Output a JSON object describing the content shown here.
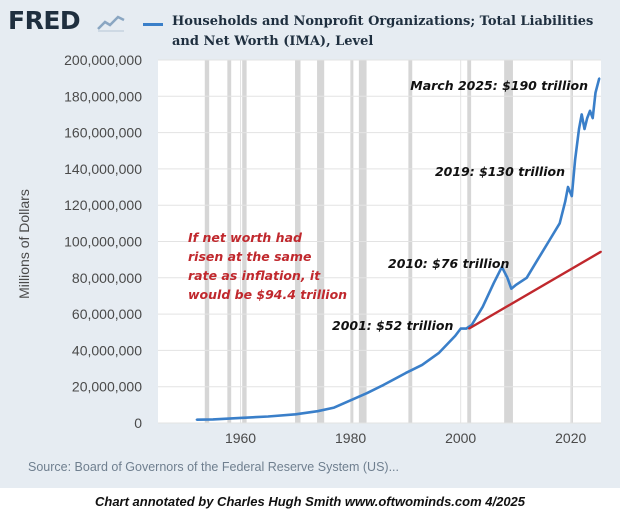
{
  "header": {
    "logo_text": "FRED",
    "logo_icon": "line-graph-icon",
    "legend_label": "Households and Nonprofit Organizations; Total Liabilities and Net Worth (IMA), Level"
  },
  "chart_data": {
    "type": "line",
    "title": "",
    "ylabel": "Millions of Dollars",
    "xlabel": "",
    "xlim": [
      1945,
      2025.5
    ],
    "ylim": [
      0,
      200000000
    ],
    "x_ticks": [
      1960,
      1980,
      2000,
      2020
    ],
    "y_ticks": [
      0,
      20000000,
      40000000,
      60000000,
      80000000,
      100000000,
      120000000,
      140000000,
      160000000,
      180000000,
      200000000
    ],
    "y_tick_labels": [
      "0",
      "20,000,000",
      "40,000,000",
      "60,000,000",
      "80,000,000",
      "100,000,000",
      "120,000,000",
      "140,000,000",
      "160,000,000",
      "180,000,000",
      "200,000,000"
    ],
    "recessions": [
      [
        1953.5,
        1954.3
      ],
      [
        1957.6,
        1958.3
      ],
      [
        1960.3,
        1961.1
      ],
      [
        1969.9,
        1970.9
      ],
      [
        1973.9,
        1975.2
      ],
      [
        1980.0,
        1980.5
      ],
      [
        1981.5,
        1982.9
      ],
      [
        1990.5,
        1991.2
      ],
      [
        2001.2,
        2001.9
      ],
      [
        2007.9,
        2009.5
      ],
      [
        2020.1,
        2020.4
      ]
    ],
    "series": [
      {
        "color": "#3a7fc9",
        "x": [
          1952,
          1955,
          1960,
          1965,
          1970,
          1974,
          1977,
          1980,
          1983,
          1986,
          1990,
          1993,
          1996,
          1999,
          2000,
          2001,
          2002,
          2004,
          2006,
          2007.5,
          2008.5,
          2009.2,
          2010,
          2012,
          2014,
          2016,
          2018,
          2019,
          2019.5,
          2020.2,
          2020.8,
          2021.5,
          2022.0,
          2022.5,
          2023.0,
          2023.5,
          2024.0,
          2024.5,
          2025.2
        ],
        "y": [
          1800000,
          2000000,
          2800000,
          3600000,
          4800000,
          6500000,
          8500000,
          12500000,
          16500000,
          21000000,
          27500000,
          32000000,
          38500000,
          48000000,
          52000000,
          52000000,
          54000000,
          64000000,
          77000000,
          86000000,
          80000000,
          74000000,
          76000000,
          80000000,
          90000000,
          100000000,
          110000000,
          122000000,
          130000000,
          125000000,
          145000000,
          162000000,
          170000000,
          162000000,
          168000000,
          172000000,
          168000000,
          182000000,
          190000000
        ]
      },
      {
        "name": "If net worth had risen at the same rate as inflation, it would be $94.4 trillion",
        "color": "#c0282d",
        "x": [
          2001.5,
          2025.5
        ],
        "y": [
          52000000,
          94400000
        ]
      }
    ],
    "annotations": [
      {
        "text": "March 2025: $190 trillion",
        "x": 2024.5,
        "y": 190000000
      },
      {
        "text": "2019: $130 trillion",
        "x": 2019.5,
        "y": 130000000
      },
      {
        "text": "2010: $76 trillion",
        "x": 2007.5,
        "y": 86000000
      },
      {
        "text": "2001: $52 trillion",
        "x": 2001.0,
        "y": 52000000
      },
      {
        "text": "If net worth had risen at the same rate as inflation, it would be $94.4 trillion",
        "x": 1996.0,
        "y": 60000000
      }
    ]
  },
  "footer": {
    "source": "Source: Board of Governors of the Federal Reserve System (US)...",
    "credit": "Chart annotated by Charles Hugh Smith  www.oftwominds.com  4/2025"
  }
}
